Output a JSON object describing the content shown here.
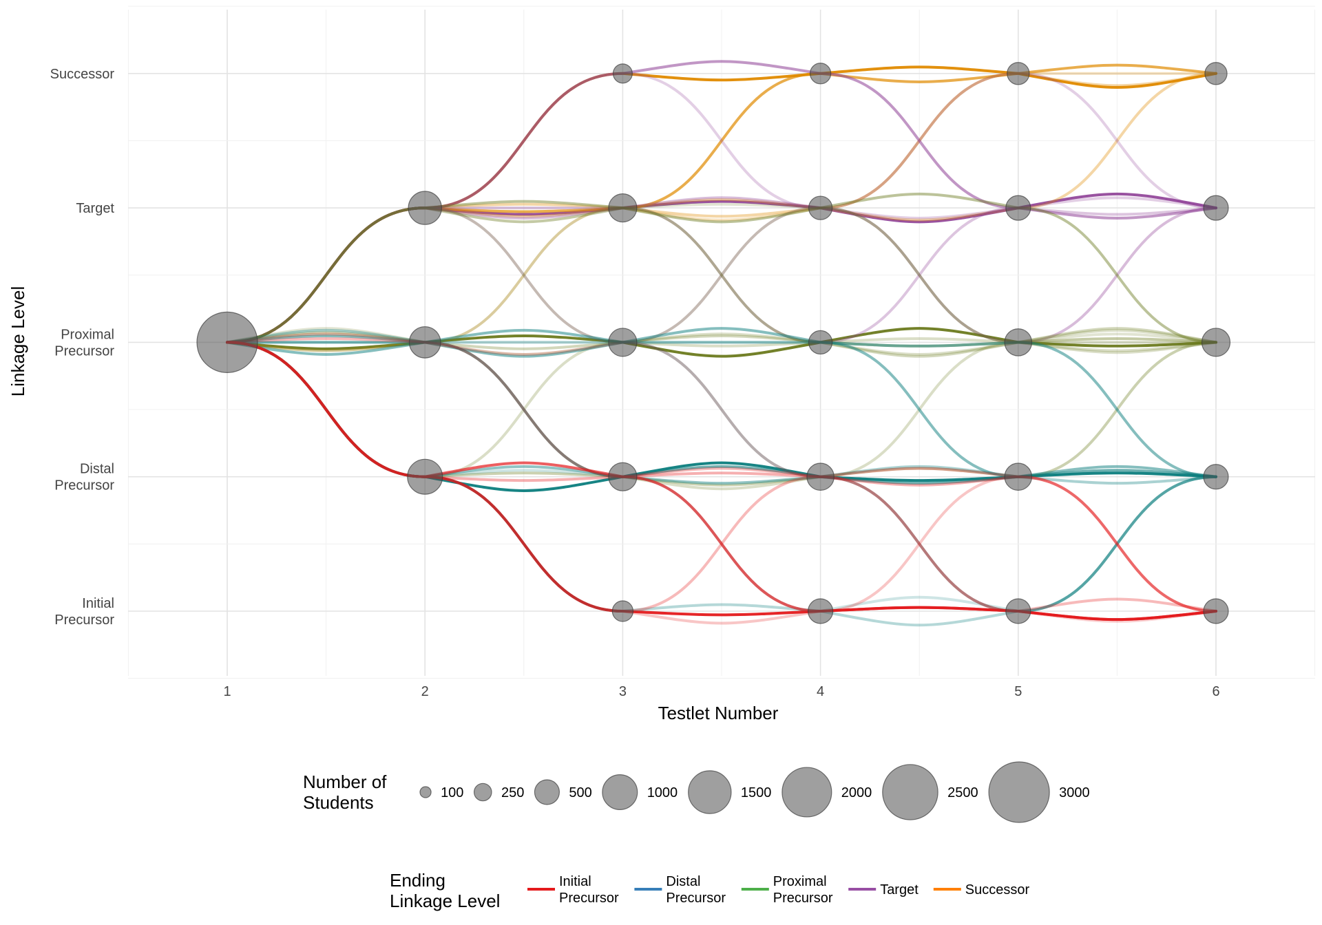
{
  "chart_data": {
    "type": "flow",
    "xlabel": "Testlet Number",
    "ylabel": "Linkage Level",
    "x_ticks": [
      "1",
      "2",
      "3",
      "4",
      "5",
      "6"
    ],
    "levels": [
      {
        "name": "Initial Precursor",
        "lines": [
          "Initial",
          "Precursor"
        ]
      },
      {
        "name": "Distal Precursor",
        "lines": [
          "Distal",
          "Precursor"
        ]
      },
      {
        "name": "Proximal Precursor",
        "lines": [
          "Proximal",
          "Precursor"
        ]
      },
      {
        "name": "Target",
        "lines": [
          "Target"
        ]
      },
      {
        "name": "Successor",
        "lines": [
          "Successor"
        ]
      }
    ],
    "ending_colors": {
      "Initial Precursor": "#e41a1c",
      "Distal Precursor": "#377eb8",
      "Proximal Precursor": "#4daf4a",
      "Target": "#984ea3",
      "Successor": "#ff7f00"
    },
    "path_colors": [
      "#e41a1c",
      "#0b7d7d",
      "#6b7a1e",
      "#8e3f96",
      "#e08a00"
    ],
    "nodes": [
      {
        "testlet": 1,
        "level": "Proximal Precursor",
        "n": 3000
      },
      {
        "testlet": 2,
        "level": "Distal Precursor",
        "n": 1000
      },
      {
        "testlet": 2,
        "level": "Proximal Precursor",
        "n": 800
      },
      {
        "testlet": 2,
        "level": "Target",
        "n": 900
      },
      {
        "testlet": 3,
        "level": "Initial Precursor",
        "n": 350
      },
      {
        "testlet": 3,
        "level": "Distal Precursor",
        "n": 650
      },
      {
        "testlet": 3,
        "level": "Proximal Precursor",
        "n": 650
      },
      {
        "testlet": 3,
        "level": "Target",
        "n": 650
      },
      {
        "testlet": 3,
        "level": "Successor",
        "n": 300
      },
      {
        "testlet": 4,
        "level": "Initial Precursor",
        "n": 500
      },
      {
        "testlet": 4,
        "level": "Distal Precursor",
        "n": 600
      },
      {
        "testlet": 4,
        "level": "Proximal Precursor",
        "n": 450
      },
      {
        "testlet": 4,
        "level": "Target",
        "n": 450
      },
      {
        "testlet": 4,
        "level": "Successor",
        "n": 350
      },
      {
        "testlet": 5,
        "level": "Initial Precursor",
        "n": 500
      },
      {
        "testlet": 5,
        "level": "Distal Precursor",
        "n": 600
      },
      {
        "testlet": 5,
        "level": "Proximal Precursor",
        "n": 600
      },
      {
        "testlet": 5,
        "level": "Target",
        "n": 500
      },
      {
        "testlet": 5,
        "level": "Successor",
        "n": 400
      },
      {
        "testlet": 6,
        "level": "Initial Precursor",
        "n": 500
      },
      {
        "testlet": 6,
        "level": "Distal Precursor",
        "n": 500
      },
      {
        "testlet": 6,
        "level": "Proximal Precursor",
        "n": 650
      },
      {
        "testlet": 6,
        "level": "Target",
        "n": 500
      },
      {
        "testlet": 6,
        "level": "Successor",
        "n": 400
      }
    ],
    "paths": [
      {
        "levels": [
          3,
          4,
          5,
          5,
          5,
          5
        ],
        "ending": "Successor",
        "opacity": 0.95
      },
      {
        "levels": [
          3,
          4,
          4,
          4,
          4,
          4
        ],
        "ending": "Target",
        "opacity": 0.9
      },
      {
        "levels": [
          3,
          3,
          3,
          3,
          3,
          3
        ],
        "ending": "Proximal Precursor",
        "opacity": 0.95
      },
      {
        "levels": [
          3,
          2,
          2,
          2,
          2,
          2
        ],
        "ending": "Distal Precursor",
        "opacity": 0.95
      },
      {
        "levels": [
          3,
          2,
          1,
          1,
          1,
          1
        ],
        "ending": "Initial Precursor",
        "opacity": 0.95
      },
      {
        "levels": [
          3,
          4,
          4,
          5,
          5,
          5
        ],
        "ending": "Successor",
        "opacity": 0.7
      },
      {
        "levels": [
          3,
          4,
          4,
          4,
          5,
          5
        ],
        "ending": "Successor",
        "opacity": 0.35
      },
      {
        "levels": [
          3,
          4,
          4,
          4,
          4,
          5
        ],
        "ending": "Successor",
        "opacity": 0.35
      },
      {
        "levels": [
          3,
          3,
          4,
          4,
          5,
          5
        ],
        "ending": "Successor",
        "opacity": 0.25
      },
      {
        "levels": [
          3,
          4,
          5,
          5,
          4,
          4
        ],
        "ending": "Target",
        "opacity": 0.55
      },
      {
        "levels": [
          3,
          4,
          5,
          4,
          4,
          4
        ],
        "ending": "Target",
        "opacity": 0.25
      },
      {
        "levels": [
          3,
          4,
          4,
          3,
          4,
          4
        ],
        "ending": "Target",
        "opacity": 0.3
      },
      {
        "levels": [
          3,
          4,
          4,
          4,
          3,
          4
        ],
        "ending": "Target",
        "opacity": 0.35
      },
      {
        "levels": [
          3,
          4,
          3,
          4,
          5,
          4
        ],
        "ending": "Target",
        "opacity": 0.25
      },
      {
        "levels": [
          3,
          3,
          3,
          3,
          3,
          3
        ],
        "ending": "Proximal Precursor",
        "opacity": 0.3
      },
      {
        "levels": [
          3,
          4,
          4,
          4,
          4,
          3
        ],
        "ending": "Proximal Precursor",
        "opacity": 0.45
      },
      {
        "levels": [
          3,
          4,
          4,
          3,
          3,
          3
        ],
        "ending": "Proximal Precursor",
        "opacity": 0.4
      },
      {
        "levels": [
          3,
          4,
          3,
          3,
          3,
          3
        ],
        "ending": "Proximal Precursor",
        "opacity": 0.25
      },
      {
        "levels": [
          3,
          3,
          4,
          4,
          3,
          3
        ],
        "ending": "Proximal Precursor",
        "opacity": 0.2
      },
      {
        "levels": [
          3,
          2,
          2,
          2,
          2,
          3
        ],
        "ending": "Proximal Precursor",
        "opacity": 0.35
      },
      {
        "levels": [
          3,
          2,
          3,
          3,
          3,
          3
        ],
        "ending": "Proximal Precursor",
        "opacity": 0.25
      },
      {
        "levels": [
          3,
          3,
          2,
          2,
          3,
          3
        ],
        "ending": "Proximal Precursor",
        "opacity": 0.25
      },
      {
        "levels": [
          3,
          3,
          3,
          4,
          3,
          3
        ],
        "ending": "Proximal Precursor",
        "opacity": 0.25
      },
      {
        "levels": [
          3,
          3,
          3,
          3,
          2,
          2
        ],
        "ending": "Distal Precursor",
        "opacity": 0.5
      },
      {
        "levels": [
          3,
          3,
          3,
          2,
          2,
          2
        ],
        "ending": "Distal Precursor",
        "opacity": 0.35
      },
      {
        "levels": [
          3,
          3,
          2,
          2,
          2,
          2
        ],
        "ending": "Distal Precursor",
        "opacity": 0.6
      },
      {
        "levels": [
          3,
          2,
          2,
          2,
          1,
          2
        ],
        "ending": "Distal Precursor",
        "opacity": 0.45
      },
      {
        "levels": [
          3,
          2,
          1,
          1,
          1,
          2
        ],
        "ending": "Distal Precursor",
        "opacity": 0.3
      },
      {
        "levels": [
          3,
          2,
          2,
          1,
          1,
          2
        ],
        "ending": "Distal Precursor",
        "opacity": 0.2
      },
      {
        "levels": [
          3,
          3,
          3,
          3,
          3,
          2
        ],
        "ending": "Distal Precursor",
        "opacity": 0.5
      },
      {
        "levels": [
          3,
          2,
          2,
          1,
          1,
          1
        ],
        "ending": "Initial Precursor",
        "opacity": 0.7
      },
      {
        "levels": [
          3,
          2,
          2,
          2,
          2,
          1
        ],
        "ending": "Initial Precursor",
        "opacity": 0.35
      },
      {
        "levels": [
          3,
          2,
          1,
          2,
          2,
          1
        ],
        "ending": "Initial Precursor",
        "opacity": 0.3
      },
      {
        "levels": [
          3,
          3,
          2,
          2,
          1,
          1
        ],
        "ending": "Initial Precursor",
        "opacity": 0.3
      },
      {
        "levels": [
          3,
          2,
          1,
          1,
          2,
          1
        ],
        "ending": "Initial Precursor",
        "opacity": 0.25
      },
      {
        "levels": [
          3,
          3,
          3,
          2,
          1,
          1
        ],
        "ending": "Initial Precursor",
        "opacity": 0.2
      }
    ],
    "size_legend": {
      "title": "Number of\nStudents",
      "values": [
        100,
        250,
        500,
        1000,
        1500,
        2000,
        2500,
        3000
      ]
    },
    "color_legend": {
      "title": "Ending\nLinkage Level",
      "entries": [
        {
          "name": "Initial Precursor",
          "label": "Initial\nPrecursor"
        },
        {
          "name": "Distal Precursor",
          "label": "Distal\nPrecursor"
        },
        {
          "name": "Proximal Precursor",
          "label": "Proximal\nPrecursor"
        },
        {
          "name": "Target",
          "label": "Target"
        },
        {
          "name": "Successor",
          "label": "Successor"
        }
      ]
    },
    "legend_position": "bottom",
    "grid": true
  }
}
